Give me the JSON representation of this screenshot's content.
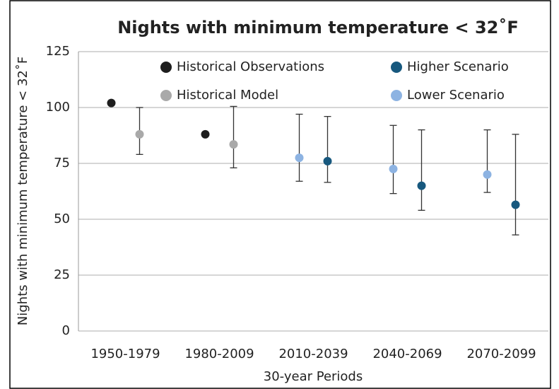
{
  "chart_data": {
    "type": "errorbar-scatter",
    "title": "Nights with minimum temperature < 32˚F",
    "x_label": "30-year Periods",
    "y_label": "Nights with minimum temperature < 32˚F",
    "categories": [
      "1950-1979",
      "1980-2009",
      "2010-2039",
      "2040-2069",
      "2070-2099"
    ],
    "series": [
      {
        "name": "Historical Observations",
        "color": "#1e1e1e",
        "values": [
          102,
          88,
          null,
          null,
          null
        ],
        "low": [
          null,
          null,
          null,
          null,
          null
        ],
        "high": [
          null,
          null,
          null,
          null,
          null
        ]
      },
      {
        "name": "Historical Model",
        "color": "#a9a9a9",
        "values": [
          88,
          83.5,
          null,
          null,
          null
        ],
        "low": [
          79,
          73,
          null,
          null,
          null
        ],
        "high": [
          100,
          100.5,
          null,
          null,
          null
        ]
      },
      {
        "name": "Lower Scenario",
        "color": "#8db3e2",
        "values": [
          null,
          null,
          77.5,
          72.5,
          70
        ],
        "low": [
          null,
          null,
          67,
          61.5,
          62
        ],
        "high": [
          null,
          null,
          97,
          92,
          90
        ]
      },
      {
        "name": "Higher Scenario",
        "color": "#17587e",
        "values": [
          null,
          null,
          76,
          65,
          56.5
        ],
        "low": [
          null,
          null,
          66.5,
          54,
          43
        ],
        "high": [
          null,
          null,
          96,
          90,
          88
        ]
      }
    ],
    "ylim": [
      0,
      125
    ],
    "yticks": [
      0,
      25,
      50,
      75,
      100,
      125
    ],
    "grid": true
  }
}
